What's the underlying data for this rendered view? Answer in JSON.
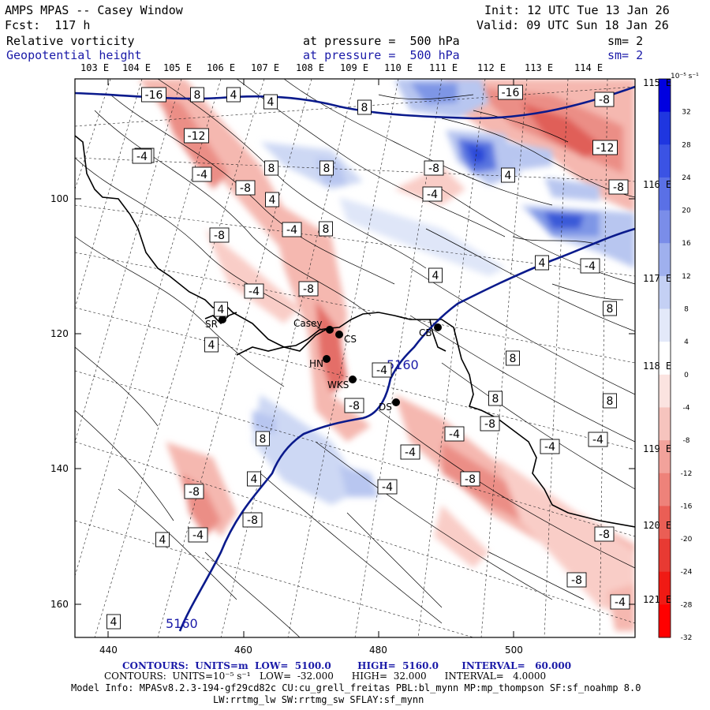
{
  "header": {
    "model": "AMPS MPAS -- Casey Window",
    "forecast": "Fcst:  117 h",
    "init": "Init: 12 UTC Tue 13 Jan 26",
    "valid": "Valid: 09 UTC Sun 18 Jan 26",
    "field1": "Relative vorticity",
    "field1_level": "at pressure =  500 hPa",
    "field1_sm": "sm= 2",
    "field2": "Geopotential height",
    "field2_level": "at pressure =  500 hPa",
    "field2_sm": "sm= 2"
  },
  "colors": {
    "positive_strong": "#0000e0",
    "negative_strong": "#ff0000",
    "height_contour": "#0a1a8c"
  },
  "axes": {
    "lon_labels": [
      "103 E",
      "104 E",
      "105 E",
      "106 E",
      "107 E",
      "108 E",
      "109 E",
      "110 E",
      "111 E",
      "112 E",
      "113 E",
      "114 E"
    ],
    "right_lon_labels": [
      "115 E",
      "116 E",
      "117 E",
      "118 E",
      "119 E",
      "120 E",
      "121 E"
    ],
    "x_ticks": [
      "440",
      "460",
      "480",
      "500"
    ],
    "y_ticks": [
      "100",
      "120",
      "140",
      "160"
    ]
  },
  "colorbar": {
    "unit": "10⁻⁵ s⁻¹",
    "labels": [
      "32",
      "28",
      "24",
      "20",
      "16",
      "12",
      "8",
      "4",
      "0",
      "-4",
      "-8",
      "-12",
      "-16",
      "-20",
      "-24",
      "-28",
      "-32"
    ]
  },
  "stations": [
    {
      "name": "SR"
    },
    {
      "name": "Casey"
    },
    {
      "name": "CS"
    },
    {
      "name": "HN"
    },
    {
      "name": "WKS"
    },
    {
      "name": "DS"
    },
    {
      "name": "CB"
    }
  ],
  "contour_labels": [
    "-16",
    "8",
    "4",
    "4",
    "8",
    "-16",
    "-8",
    "-12",
    "-4",
    "-12",
    "-4",
    "8",
    "8",
    "-8",
    "4",
    "-8",
    "-4",
    "-8",
    "4",
    "-8",
    "-4",
    "8",
    "4",
    "-4",
    "-8",
    "4",
    "4",
    "-4",
    "8",
    "-4",
    "4",
    "-8",
    "8",
    "8",
    "-4",
    "-8",
    "-4",
    "-4",
    "-8",
    "8",
    "-4",
    "4",
    "8",
    "-4",
    "-8",
    "4",
    "-4",
    "-8",
    "-8",
    "-4",
    "4",
    "-4",
    "-8"
  ],
  "height_labels": [
    "5160",
    "5160"
  ],
  "footer": {
    "line1_a": "CONTOURS:  UNITS=m  LOW=  5100.0        HIGH=  5160.0       INTERVAL=   60.000",
    "line2": "CONTOURS:  UNITS=10⁻⁵ s⁻¹   LOW=  -32.000      HIGH=  32.000      INTERVAL=   4.0000",
    "line3": "Model Info: MPASv8.2.3-194-gf29cd82c CU:cu_grell_freitas PBL:bl_mynn MP:mp_thompson SF:sf_noahmp 8.0",
    "line4": "LW:rrtmg_lw SW:rrtmg_sw SFLAY:sf_mynn"
  }
}
